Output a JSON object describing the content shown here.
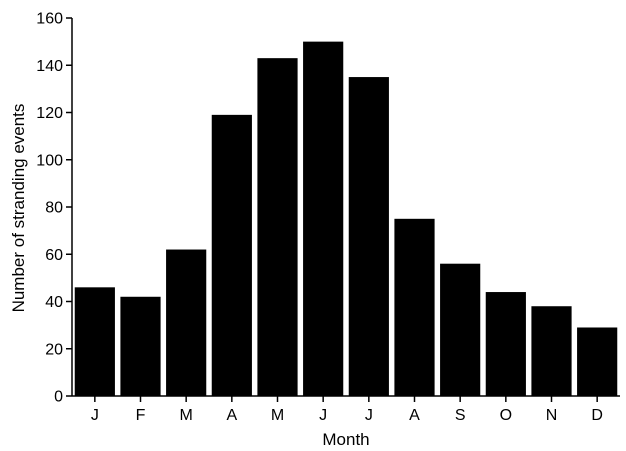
{
  "chart_data": {
    "type": "bar",
    "categories": [
      "J",
      "F",
      "M",
      "A",
      "M",
      "J",
      "J",
      "A",
      "S",
      "O",
      "N",
      "D"
    ],
    "values": [
      46,
      42,
      62,
      119,
      143,
      150,
      135,
      75,
      56,
      44,
      38,
      29
    ],
    "xlabel": "Month",
    "ylabel": "Number of stranding events",
    "ylim": [
      0,
      160
    ],
    "yticks": [
      "0",
      "20",
      "40",
      "60",
      "80",
      "100",
      "120",
      "140",
      "160"
    ],
    "bar_color": "#000000",
    "grid": false,
    "legend": "none"
  }
}
